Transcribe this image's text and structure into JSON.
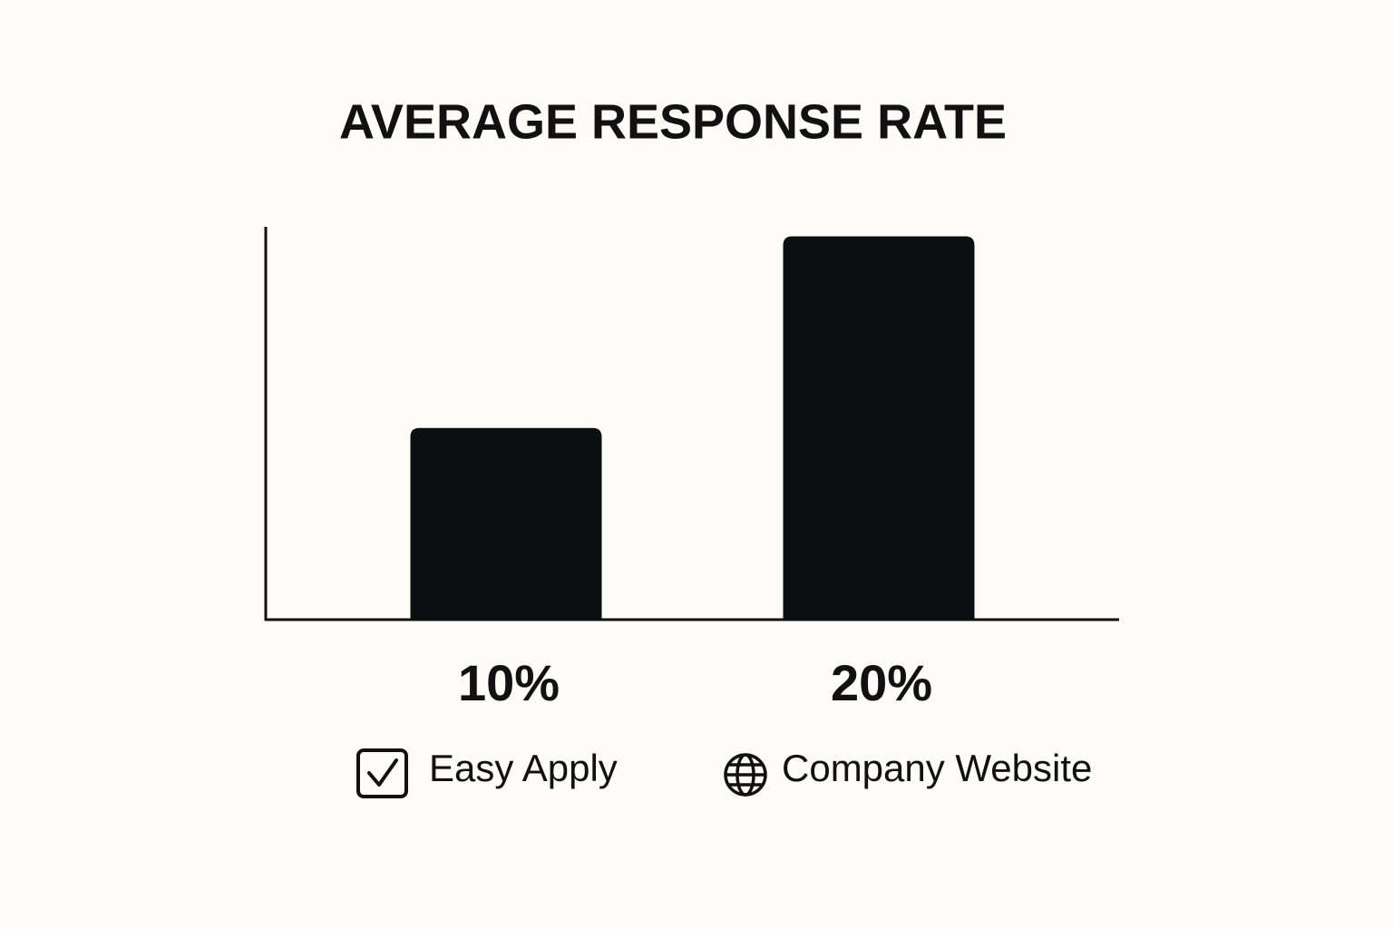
{
  "chart_data": {
    "type": "bar",
    "title": "AVERAGE RESPONSE RATE",
    "categories": [
      "Easy Apply",
      "Company Website"
    ],
    "values": [
      10,
      20
    ],
    "value_labels": [
      "10%",
      "20%"
    ],
    "color": "#0c0f0f",
    "ylim": [
      0,
      20.5
    ]
  }
}
